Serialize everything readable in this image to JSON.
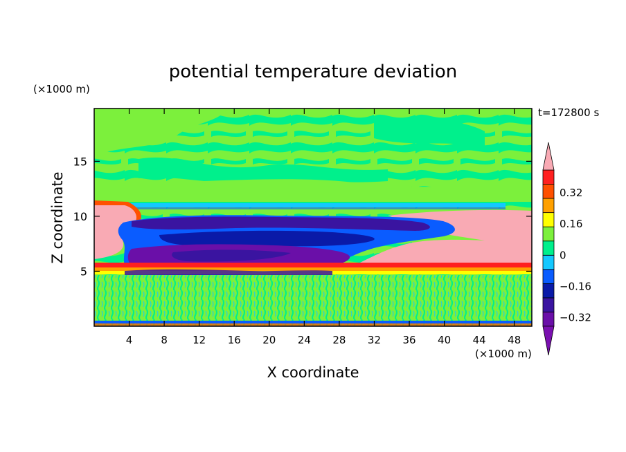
{
  "chart_data": {
    "type": "heatmap",
    "title": "potential temperature deviation",
    "xlabel": "X coordinate",
    "ylabel": "Z coordinate",
    "x_units": "(×1000 m)",
    "y_units": "(×1000 m)",
    "time_label": "t=172800 s",
    "xlim": [
      0,
      50
    ],
    "ylim": [
      0,
      19.8
    ],
    "x_ticks": [
      "4",
      "8",
      "12",
      "16",
      "20",
      "24",
      "28",
      "32",
      "36",
      "40",
      "44",
      "48"
    ],
    "y_ticks": [
      "5",
      "10",
      "15"
    ],
    "colorbar": {
      "levels": [
        -0.4,
        -0.32,
        -0.24,
        -0.16,
        -0.08,
        0,
        0.08,
        0.16,
        0.24,
        0.32,
        0.4
      ],
      "labels": [
        "0.32",
        "0.16",
        "0",
        "−0.16",
        "−0.32"
      ],
      "colors_low_to_high": [
        "#6a0fa8",
        "#3a14a0",
        "#0a1aa8",
        "#0a5cff",
        "#14c8ff",
        "#00f08c",
        "#7cf03c",
        "#ffff00",
        "#ffa000",
        "#ff5000",
        "#ff2020"
      ],
      "over_color": "#f9aab4",
      "under_color": "#7a10b0",
      "extend": "both"
    },
    "regions": [
      {
        "feature": "upper layer mixed",
        "value_range": [
          0,
          0.08
        ],
        "z_range": [
          12,
          19.8
        ]
      },
      {
        "feature": "thin cool band",
        "value": -0.08,
        "z": 10.8
      },
      {
        "feature": "cold plume upper",
        "x_range": [
          2,
          41
        ],
        "z_range": [
          8.5,
          10
        ],
        "value": -0.4
      },
      {
        "feature": "cold plume mid",
        "x_range": [
          2,
          35
        ],
        "z_range": [
          6.5,
          8.5
        ],
        "value": -0.32
      },
      {
        "feature": "cold plume lower",
        "x_range": [
          3,
          31
        ],
        "z_range": [
          5,
          6.5
        ],
        "value": -0.4
      },
      {
        "feature": "warm layer right",
        "x_range": [
          31,
          50
        ],
        "z_range": [
          6,
          9.8
        ],
        "value": 0.4
      },
      {
        "feature": "warm layer left",
        "x_range": [
          0,
          4
        ],
        "z_range": [
          7,
          11
        ],
        "value": 0.4
      },
      {
        "feature": "inversion band",
        "z_range": [
          5.4,
          5.9
        ],
        "value": 0.32
      },
      {
        "feature": "boundary layer",
        "z_range": [
          0,
          5
        ],
        "value_range": [
          -0.08,
          0.08
        ]
      }
    ]
  }
}
